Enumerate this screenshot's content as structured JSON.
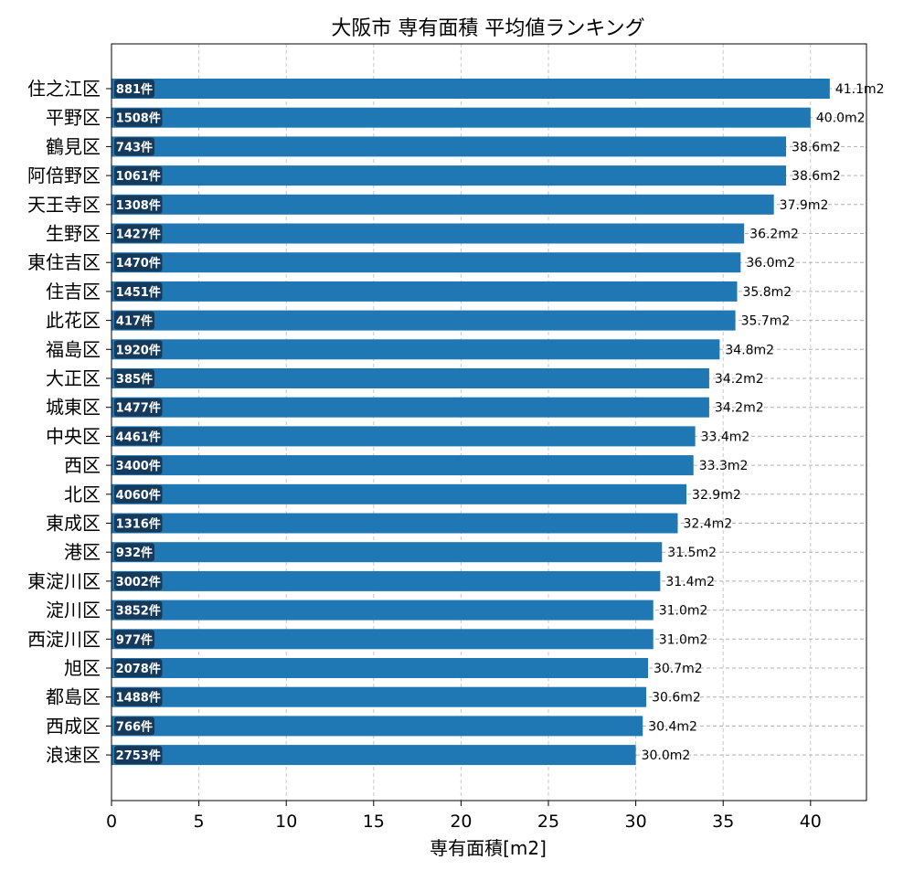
{
  "chart_data": {
    "type": "bar",
    "orientation": "horizontal",
    "title": "大阪市 専有面積 平均値ランキング",
    "xlabel": "専有面積[m2]",
    "ylabel": "",
    "xlim": [
      0,
      43.2
    ],
    "xticks": [
      0,
      5,
      10,
      15,
      20,
      25,
      30,
      35,
      40
    ],
    "grid": true,
    "categories": [
      "住之江区",
      "平野区",
      "鶴見区",
      "阿倍野区",
      "天王寺区",
      "生野区",
      "東住吉区",
      "住吉区",
      "此花区",
      "福島区",
      "大正区",
      "城東区",
      "中央区",
      "西区",
      "北区",
      "東成区",
      "港区",
      "東淀川区",
      "淀川区",
      "西淀川区",
      "旭区",
      "都島区",
      "西成区",
      "浪速区"
    ],
    "values": [
      41.1,
      40.0,
      38.6,
      38.6,
      37.9,
      36.2,
      36.0,
      35.8,
      35.7,
      34.8,
      34.2,
      34.2,
      33.4,
      33.3,
      32.9,
      32.4,
      31.5,
      31.4,
      31.0,
      31.0,
      30.7,
      30.6,
      30.4,
      30.0
    ],
    "value_labels": [
      "41.1m2",
      "40.0m2",
      "38.6m2",
      "38.6m2",
      "37.9m2",
      "36.2m2",
      "36.0m2",
      "35.8m2",
      "35.7m2",
      "34.8m2",
      "34.2m2",
      "34.2m2",
      "33.4m2",
      "33.3m2",
      "32.9m2",
      "32.4m2",
      "31.5m2",
      "31.4m2",
      "31.0m2",
      "31.0m2",
      "30.7m2",
      "30.6m2",
      "30.4m2",
      "30.0m2"
    ],
    "count_labels": [
      "881件",
      "1508件",
      "743件",
      "1061件",
      "1308件",
      "1427件",
      "1470件",
      "1451件",
      "417件",
      "1920件",
      "385件",
      "1477件",
      "4461件",
      "3400件",
      "4060件",
      "1316件",
      "932件",
      "3002件",
      "3852件",
      "977件",
      "2078件",
      "1488件",
      "766件",
      "2753件"
    ],
    "bar_color": "#1f77b4",
    "badge_color": "#163a5c"
  }
}
